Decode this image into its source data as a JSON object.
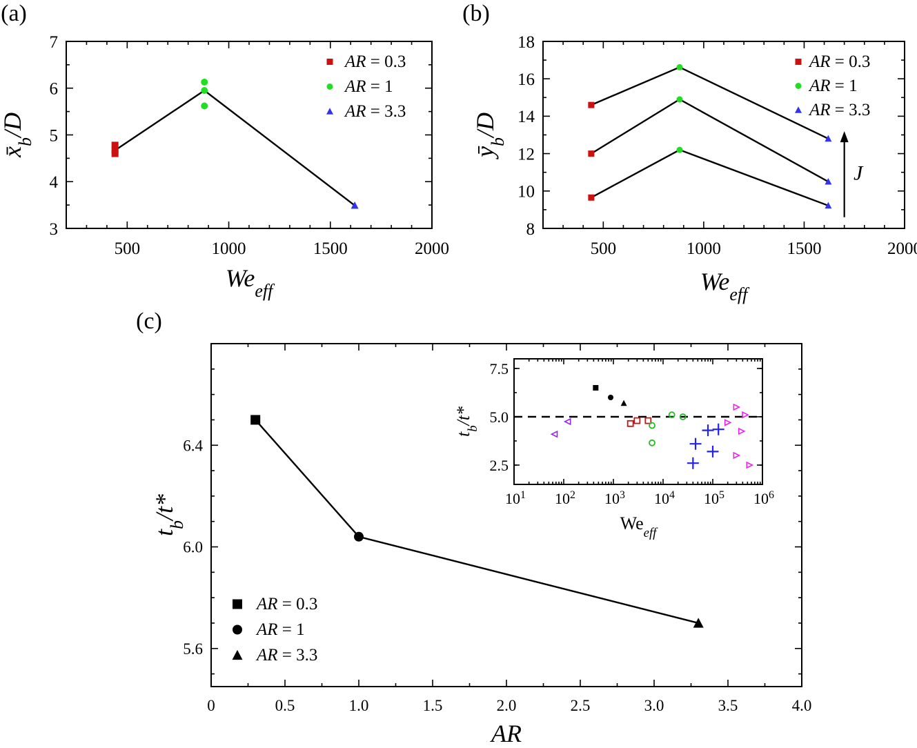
{
  "chart_data": [
    {
      "id": "a",
      "panel_label": "(a)",
      "type": "scatter",
      "ylabel_main": "x̄",
      "ylabel_sub": "b",
      "ylabel_tail": "/D",
      "xlabel_main": "We",
      "xlabel_sub": "eff",
      "xlim": [
        200,
        2000
      ],
      "ylim": [
        3,
        7
      ],
      "xticks": [
        "500",
        "1000",
        "1500",
        "2000"
      ],
      "yticks": [
        "3",
        "4",
        "5",
        "6",
        "7"
      ],
      "series": [
        {
          "name": "AR = 0.3",
          "color": "#cc1111",
          "marker": "square",
          "points": [
            [
              440,
              4.6
            ],
            [
              440,
              4.67
            ],
            [
              440,
              4.78
            ]
          ]
        },
        {
          "name": "AR = 1",
          "color": "#22dd22",
          "marker": "circle",
          "points": [
            [
              880,
              5.62
            ],
            [
              880,
              5.95
            ],
            [
              880,
              6.13
            ]
          ]
        },
        {
          "name": "AR = 3.3",
          "color": "#3333ee",
          "marker": "triangle",
          "points": [
            [
              1620,
              3.49
            ]
          ]
        }
      ],
      "lines": [
        [
          [
            440,
            4.67
          ],
          [
            880,
            5.95
          ],
          [
            1620,
            3.49
          ]
        ]
      ],
      "legend": [
        {
          "label_main": "AR",
          "label_rest": " = 0.3"
        },
        {
          "label_main": "AR",
          "label_rest": " = 1"
        },
        {
          "label_main": "AR",
          "label_rest": " = 3.3"
        }
      ]
    },
    {
      "id": "b",
      "panel_label": "(b)",
      "type": "scatter",
      "ylabel_main": "ȳ",
      "ylabel_sub": "b",
      "ylabel_tail": "/D",
      "xlabel_main": "We",
      "xlabel_sub": "eff",
      "xlim": [
        200,
        2000
      ],
      "ylim": [
        8,
        18
      ],
      "xticks": [
        "500",
        "1000",
        "1500",
        "2000"
      ],
      "yticks": [
        "8",
        "10",
        "12",
        "14",
        "16",
        "18"
      ],
      "series": [
        {
          "name": "AR = 0.3",
          "color": "#cc1111",
          "marker": "square",
          "points": [
            [
              440,
              9.65
            ],
            [
              440,
              12.0
            ],
            [
              440,
              14.6
            ]
          ]
        },
        {
          "name": "AR = 1",
          "color": "#22dd22",
          "marker": "circle",
          "points": [
            [
              880,
              12.2
            ],
            [
              880,
              14.9
            ],
            [
              880,
              16.62
            ]
          ]
        },
        {
          "name": "AR = 3.3",
          "color": "#3333ee",
          "marker": "triangle",
          "points": [
            [
              1620,
              9.22
            ],
            [
              1620,
              10.5
            ],
            [
              1620,
              12.8
            ]
          ]
        }
      ],
      "lines": [
        [
          [
            440,
            9.65
          ],
          [
            880,
            12.2
          ],
          [
            1620,
            9.22
          ]
        ],
        [
          [
            440,
            12.0
          ],
          [
            880,
            14.9
          ],
          [
            1620,
            10.5
          ]
        ],
        [
          [
            440,
            14.6
          ],
          [
            880,
            16.62
          ],
          [
            1620,
            12.8
          ]
        ]
      ],
      "legend": [
        {
          "label_main": "AR",
          "label_rest": " = 0.3"
        },
        {
          "label_main": "AR",
          "label_rest": " = 1"
        },
        {
          "label_main": "AR",
          "label_rest": " = 3.3"
        }
      ],
      "arrow_label": "J",
      "arrow_x": 1700,
      "arrow_y": [
        8.6,
        13.2
      ]
    },
    {
      "id": "c",
      "panel_label": "(c)",
      "type": "line",
      "ylabel_main": "t",
      "ylabel_sub": "b",
      "ylabel_tail": "/t*",
      "xlabel_main": "AR",
      "xlim": [
        0,
        4
      ],
      "ylim": [
        5.45,
        6.8
      ],
      "xticks": [
        "0",
        "0.5",
        "1.0",
        "1.5",
        "2.0",
        "2.5",
        "3.0",
        "3.5",
        "4.0"
      ],
      "yticks": [
        "5.6",
        "6.0",
        "6.4"
      ],
      "series": [
        {
          "name": "AR = 0.3",
          "color": "#000000",
          "marker": "square",
          "points": [
            [
              0.3,
              6.5
            ]
          ]
        },
        {
          "name": "AR = 1",
          "color": "#000000",
          "marker": "circle",
          "points": [
            [
              1.0,
              6.04
            ]
          ]
        },
        {
          "name": "AR = 3.3",
          "color": "#000000",
          "marker": "triangle",
          "points": [
            [
              3.3,
              5.7
            ]
          ]
        }
      ],
      "lines": [
        [
          [
            0.3,
            6.5
          ],
          [
            1.0,
            6.04
          ],
          [
            3.3,
            5.7
          ]
        ]
      ],
      "legend": [
        {
          "label_main": "AR",
          "label_rest": " = 0.3"
        },
        {
          "label_main": "AR",
          "label_rest": " = 1"
        },
        {
          "label_main": "AR",
          "label_rest": " = 3.3"
        }
      ]
    },
    {
      "id": "c-inset",
      "type": "scatter",
      "xscale": "log",
      "ylabel_main": "t",
      "ylabel_sub": "b",
      "ylabel_tail": "/t*",
      "xlabel_main": "We",
      "xlabel_sub": "eff",
      "xlim_log10": [
        1,
        6
      ],
      "ylim": [
        1.5,
        8.0
      ],
      "xticks": [
        {
          "base": "10",
          "exp": "1"
        },
        {
          "base": "10",
          "exp": "2"
        },
        {
          "base": "10",
          "exp": "3"
        },
        {
          "base": "10",
          "exp": "4"
        },
        {
          "base": "10",
          "exp": "5"
        },
        {
          "base": "10",
          "exp": "6"
        }
      ],
      "yticks": [
        "2.5",
        "5.0",
        "7.5"
      ],
      "reference_line_y": 5.0,
      "series": [
        {
          "name": "present AR=0.3",
          "color": "#000000",
          "marker": "square-filled",
          "points": [
            [
              440,
              6.5
            ]
          ]
        },
        {
          "name": "present AR=1",
          "color": "#000000",
          "marker": "circle-filled",
          "points": [
            [
              880,
              6.0
            ]
          ]
        },
        {
          "name": "present AR=3.3",
          "color": "#000000",
          "marker": "triangle-filled",
          "points": [
            [
              1620,
              5.7
            ]
          ]
        },
        {
          "name": "open squares",
          "color": "#cc1111",
          "marker": "square-open",
          "points": [
            [
              2200,
              4.65
            ],
            [
              3000,
              4.8
            ],
            [
              5000,
              4.8
            ]
          ]
        },
        {
          "name": "open circles",
          "color": "#22bb22",
          "marker": "circle-open",
          "points": [
            [
              6000,
              4.55
            ],
            [
              6000,
              3.65
            ],
            [
              15000,
              5.1
            ],
            [
              25000,
              5.0
            ]
          ]
        },
        {
          "name": "plus",
          "color": "#2222ee",
          "marker": "plus",
          "points": [
            [
              40000,
              2.6
            ],
            [
              45000,
              3.6
            ],
            [
              80000,
              4.3
            ],
            [
              100000,
              3.2
            ],
            [
              130000,
              4.35
            ]
          ]
        },
        {
          "name": "right triangles",
          "color": "#ee22ee",
          "marker": "tri-right-open",
          "points": [
            [
              200000,
              4.7
            ],
            [
              300000,
              5.5
            ],
            [
              300000,
              3.0
            ],
            [
              380000,
              4.25
            ],
            [
              450000,
              5.1
            ],
            [
              550000,
              2.5
            ]
          ]
        },
        {
          "name": "left triangles",
          "color": "#9922ee",
          "marker": "tri-left-open",
          "points": [
            [
              65,
              4.1
            ],
            [
              120,
              4.75
            ]
          ]
        }
      ]
    }
  ]
}
